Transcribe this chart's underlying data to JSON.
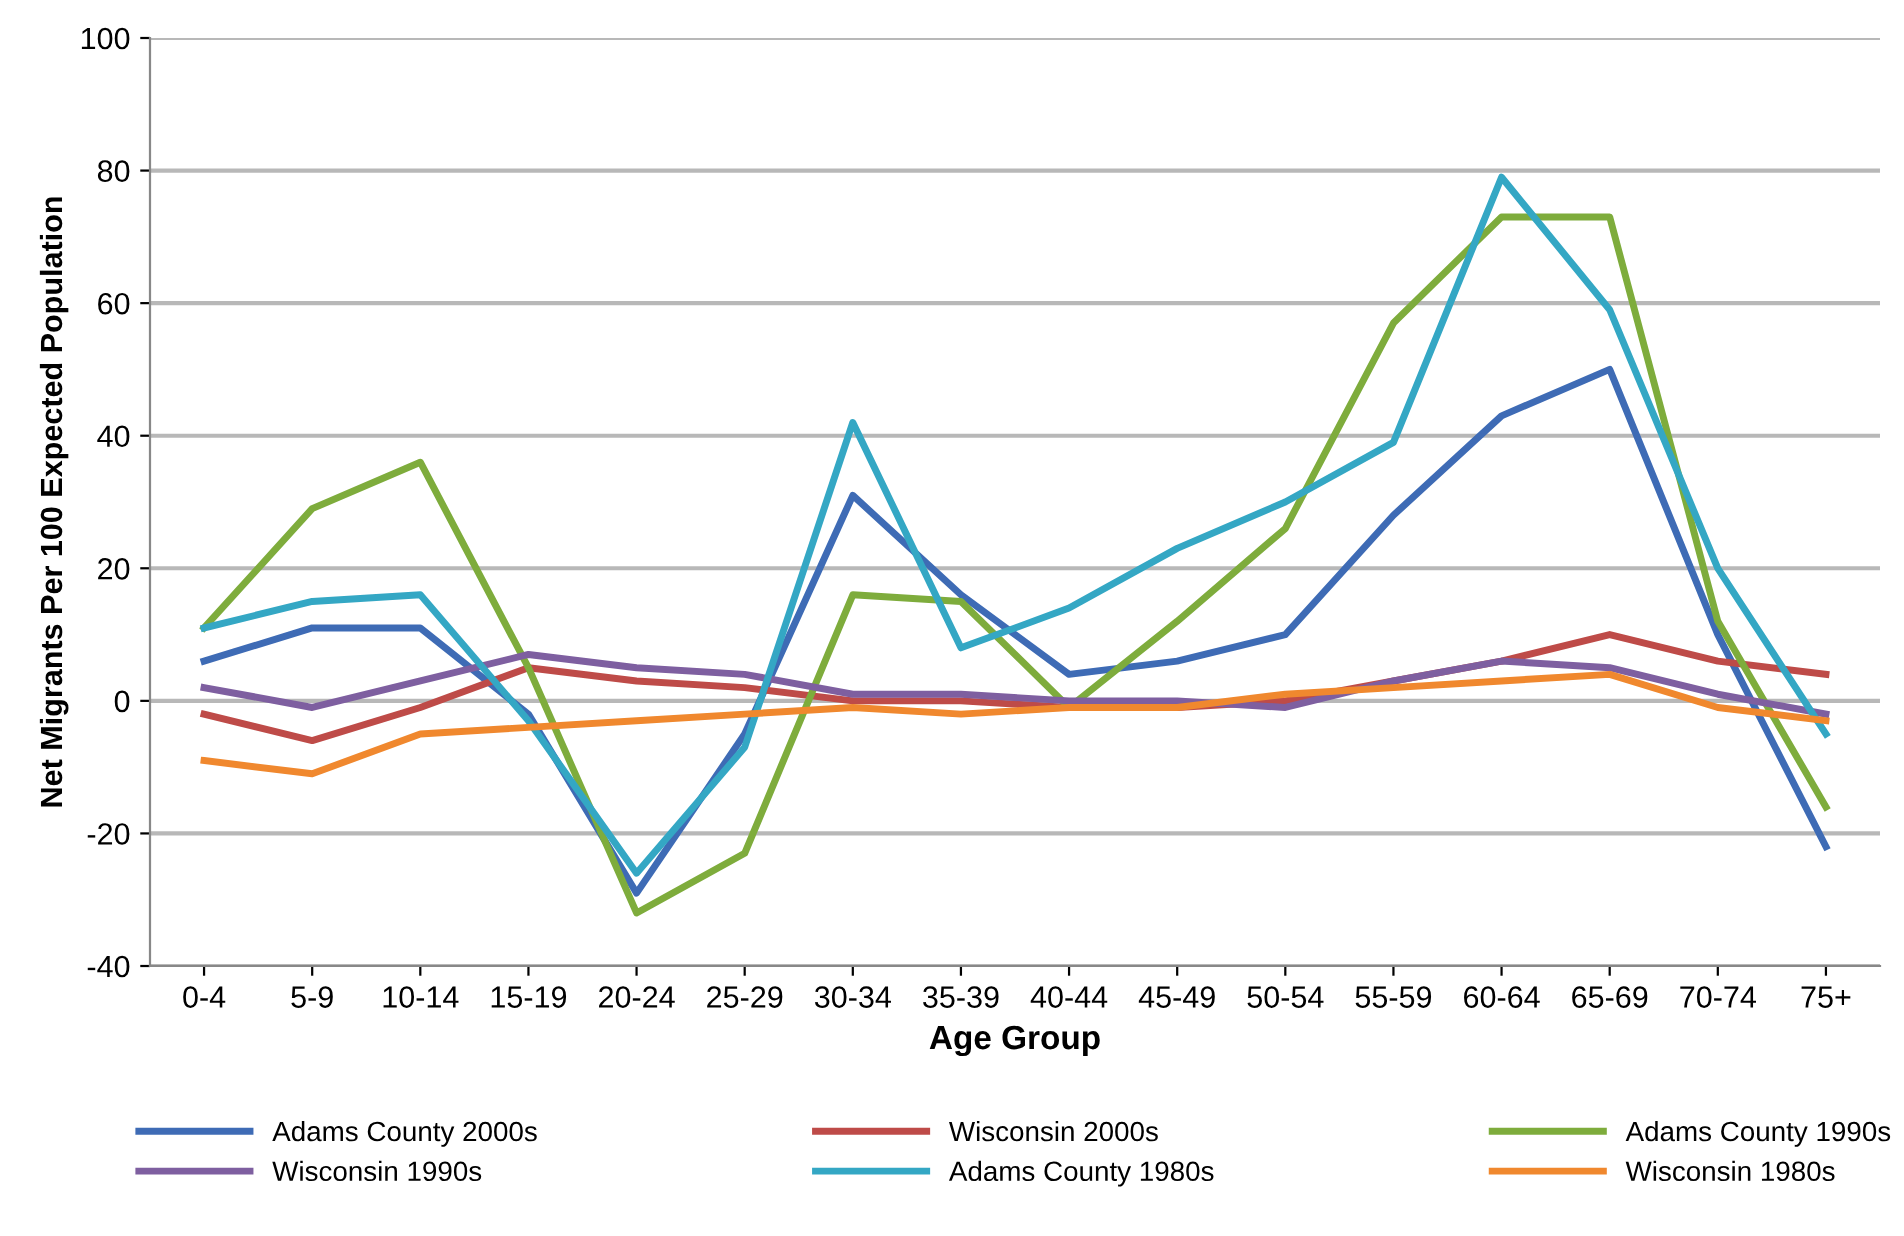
{
  "chart_data": {
    "type": "line",
    "xlabel": "Age Group",
    "ylabel": "Net Migrants Per 100 Expected Population",
    "categories": [
      "0-4",
      "5-9",
      "10-14",
      "15-19",
      "20-24",
      "25-29",
      "30-34",
      "35-39",
      "40-44",
      "45-49",
      "50-54",
      "55-59",
      "60-64",
      "65-69",
      "70-74",
      "75+"
    ],
    "series": [
      {
        "name": "Adams County 2000s",
        "color": "#3e6bb5",
        "values": [
          6,
          11,
          11,
          -2,
          -29,
          -5,
          31,
          16,
          4,
          6,
          10,
          28,
          43,
          50,
          10,
          -22
        ]
      },
      {
        "name": "Wisconsin 2000s",
        "color": "#be4b48",
        "values": [
          -2,
          -6,
          -1,
          5,
          3,
          2,
          0,
          0,
          -1,
          -1,
          0,
          3,
          6,
          10,
          6,
          4
        ]
      },
      {
        "name": "Adams County 1990s",
        "color": "#7eac3c",
        "values": [
          11,
          29,
          36,
          5,
          -32,
          -23,
          16,
          15,
          -1,
          12,
          26,
          57,
          73,
          73,
          12,
          -16
        ]
      },
      {
        "name": "Wisconsin 1990s",
        "color": "#7e5fa0",
        "values": [
          2,
          -1,
          3,
          7,
          5,
          4,
          1,
          1,
          0,
          0,
          -1,
          3,
          6,
          5,
          1,
          -2
        ]
      },
      {
        "name": "Adams County 1980s",
        "color": "#34a7c4",
        "values": [
          11,
          15,
          16,
          -3,
          -26,
          -7,
          42,
          8,
          14,
          23,
          30,
          39,
          79,
          59,
          20,
          -5
        ]
      },
      {
        "name": "Wisconsin 1980s",
        "color": "#f0882e",
        "values": [
          -9,
          -11,
          -5,
          -4,
          -3,
          -2,
          -1,
          -2,
          -1,
          -1,
          1,
          2,
          3,
          4,
          -1,
          -3
        ]
      }
    ],
    "ylim": [
      -40,
      100
    ],
    "yticks": [
      -40,
      -20,
      0,
      20,
      40,
      60,
      80,
      100
    ],
    "grid": "y",
    "legend": "bottom",
    "marker": "none",
    "line_style": "solid"
  }
}
